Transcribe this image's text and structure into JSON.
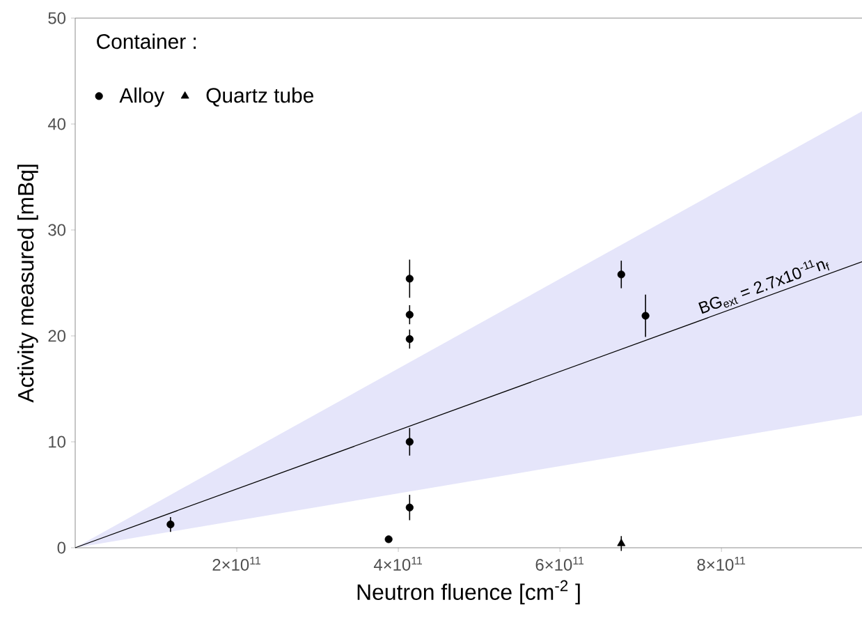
{
  "chart_data": {
    "type": "scatter",
    "xlabel": "Neutron fluence [cm$^{-2}$ ]",
    "ylabel": "Activity measured [mBq]",
    "legend_title": "Container :",
    "legend": "top left",
    "xlim": [
      0,
      974000000000
    ],
    "ylim": [
      0,
      50
    ],
    "xticks": [
      {
        "value": 200000000000,
        "label": "2×10$^{11}$"
      },
      {
        "value": 400000000000,
        "label": "4×10$^{11}$"
      },
      {
        "value": 600000000000,
        "label": "6×10$^{11}$"
      },
      {
        "value": 800000000000,
        "label": "8×10$^{11}$"
      }
    ],
    "yticks": [
      0,
      10,
      20,
      30,
      40,
      50
    ],
    "annotations": [
      "BG$_{ext}$ = 2.7x10$^{-11}$n$_{f}$"
    ],
    "series": [
      {
        "type": "line",
        "color": "#000000",
        "marker": "none",
        "x": [
          0,
          974000000000
        ],
        "values": [
          0,
          27.0
        ],
        "lower": [
          0,
          12.5
        ],
        "upper": [
          0,
          41.2
        ]
      },
      {
        "name": "Alloy",
        "color": "#000000",
        "marker": "circle",
        "x": [
          118000000000,
          388000000000,
          414000000000,
          414000000000,
          414000000000,
          414000000000,
          414000000000,
          676000000000,
          706000000000
        ],
        "values": [
          2.2,
          0.8,
          25.4,
          22.0,
          19.7,
          10.0,
          3.8,
          25.8,
          21.9
        ],
        "errors": [
          0.7,
          null,
          1.8,
          0.9,
          0.9,
          1.3,
          1.2,
          1.3,
          2.0
        ]
      },
      {
        "name": "Quartz tube",
        "color": "#000000",
        "marker": "triangle",
        "x": [
          676000000000
        ],
        "values": [
          0.4
        ],
        "errors": [
          0.7
        ]
      }
    ]
  }
}
